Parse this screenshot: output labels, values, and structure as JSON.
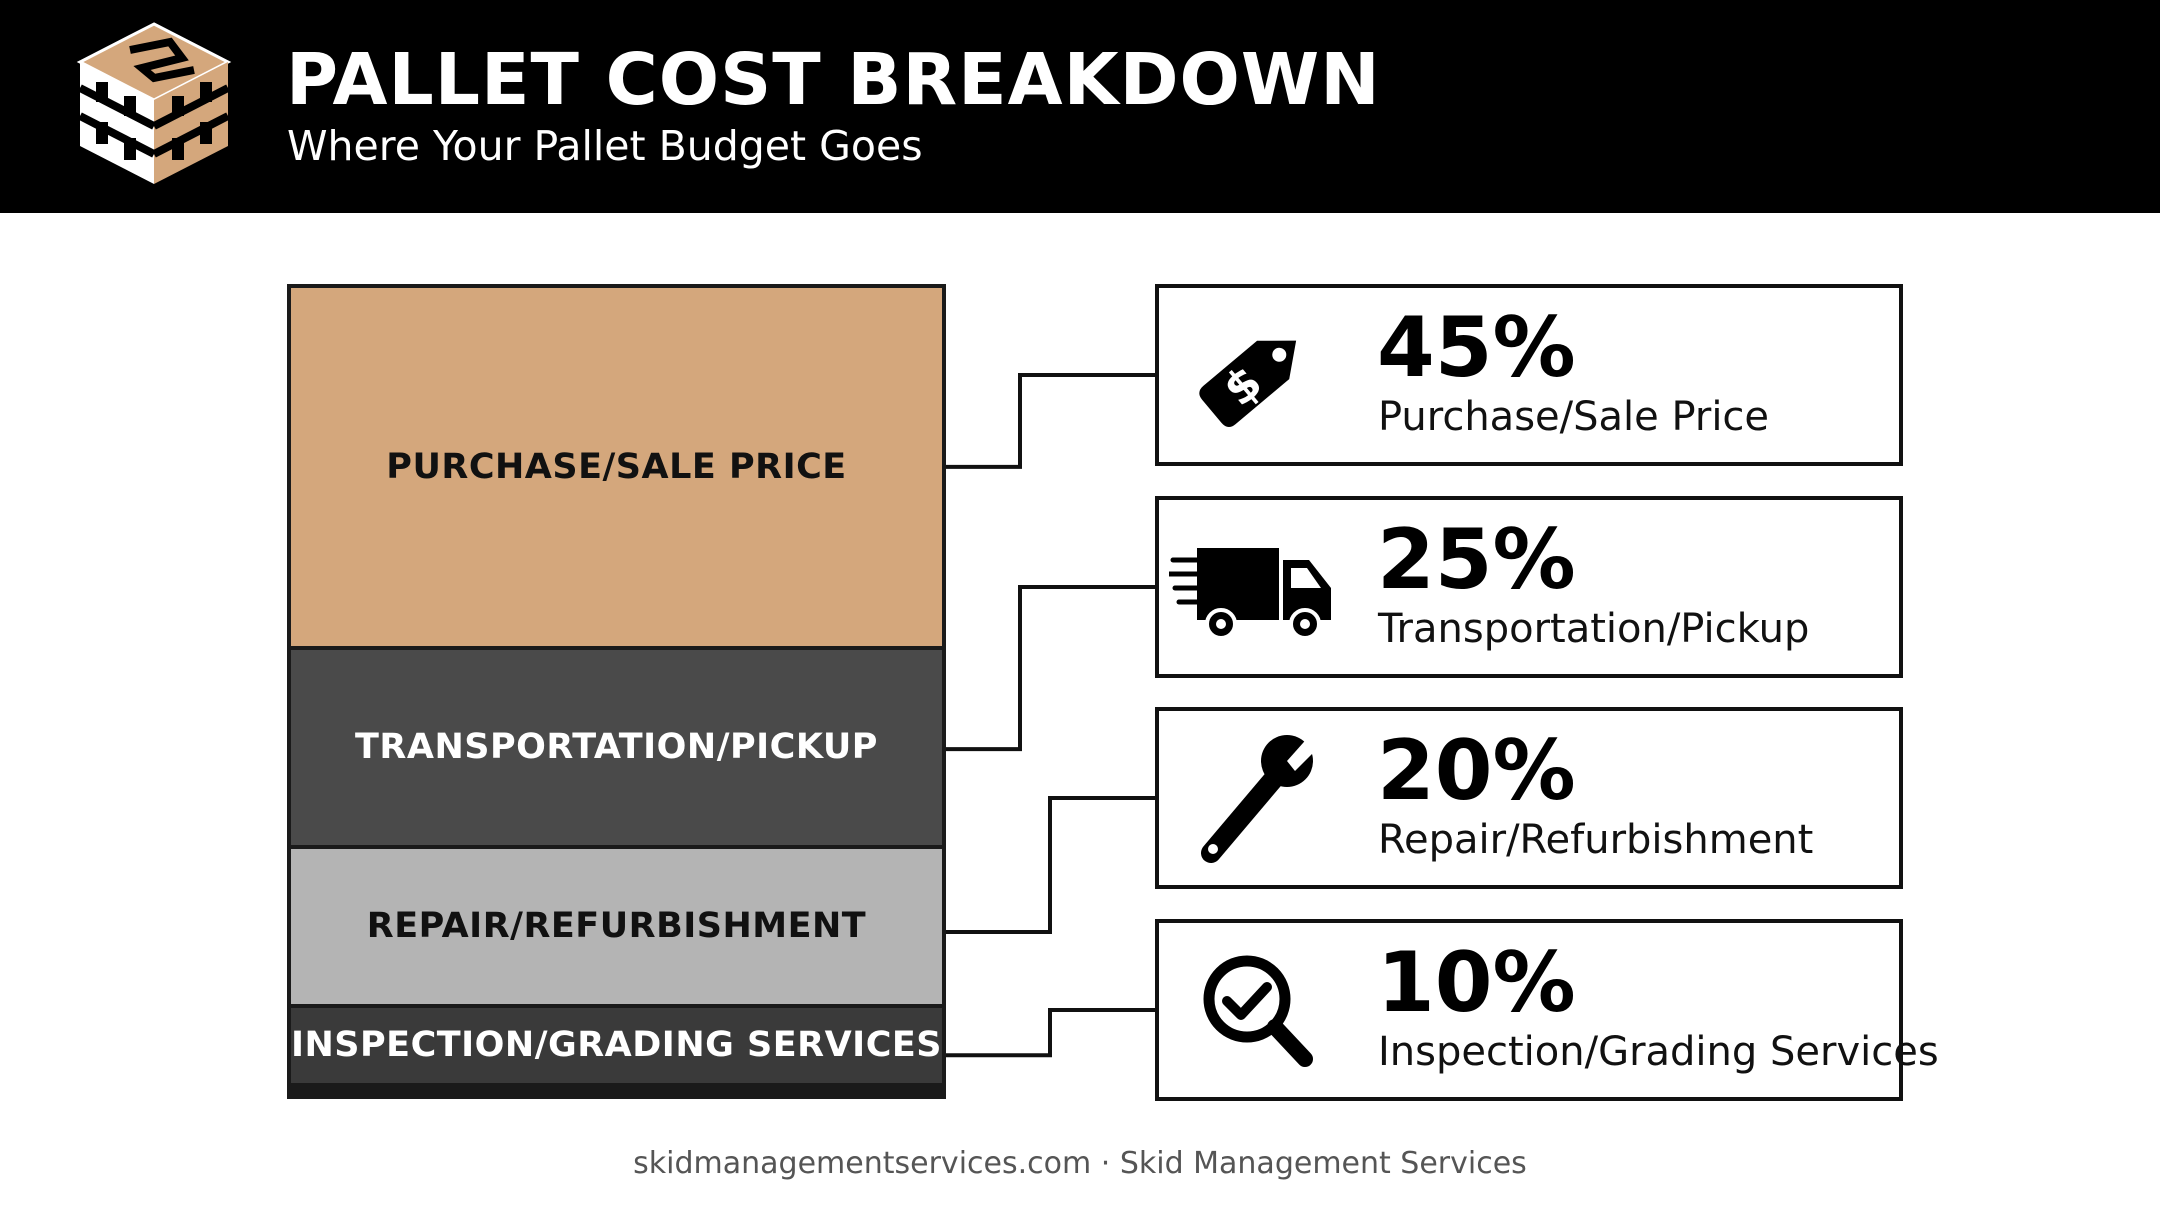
{
  "header": {
    "title": "PALLET COST BREAKDOWN",
    "subtitle": "Where Your Pallet Budget Goes"
  },
  "colors": {
    "header_bg": "#000000",
    "purchase": "#d4a77c",
    "transportation": "#4a4a4a",
    "repair": "#b4b4b4",
    "inspection": "#3a3a3a"
  },
  "chart_data": {
    "type": "bar",
    "orientation": "stacked-vertical",
    "categories": [
      "PURCHASE/SALE PRICE",
      "TRANSPORTATION/PICKUP",
      "REPAIR/REFURBISHMENT",
      "INSPECTION/GRADING SERVICES"
    ],
    "values": [
      45,
      25,
      20,
      10
    ],
    "unit": "%"
  },
  "cards": [
    {
      "percent": "45%",
      "label": "Purchase/Sale Price",
      "icon": "price-tag-icon"
    },
    {
      "percent": "25%",
      "label": "Transportation/Pickup",
      "icon": "truck-icon"
    },
    {
      "percent": "20%",
      "label": "Repair/Refurbishment",
      "icon": "wrench-icon"
    },
    {
      "percent": "10%",
      "label": "Inspection/Grading Services",
      "icon": "magnifier-check-icon"
    }
  ],
  "footer": {
    "text": "skidmanagementservices.com · Skid Management Services"
  }
}
